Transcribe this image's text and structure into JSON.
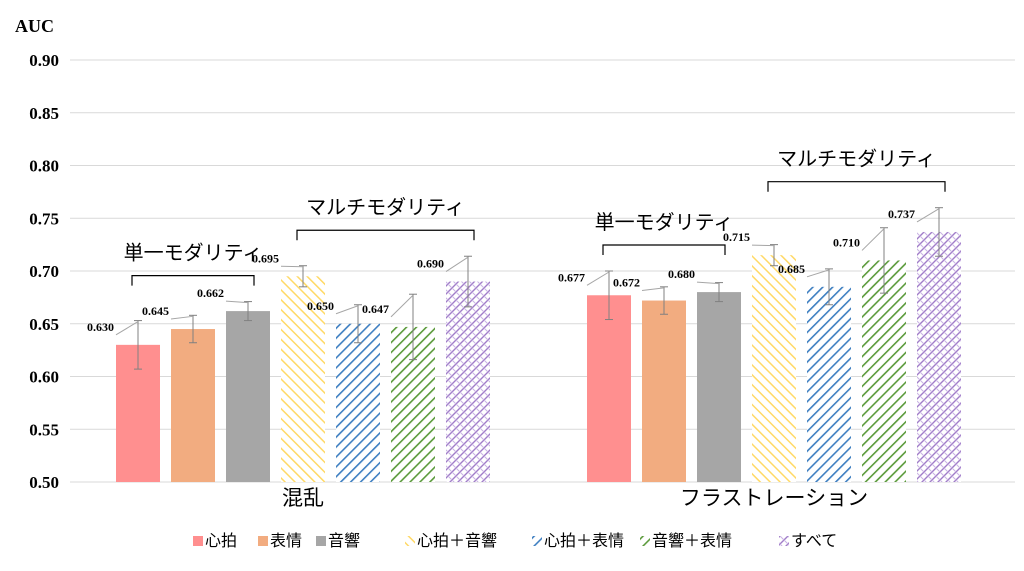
{
  "chart_data": {
    "type": "bar",
    "ylabel": "AUC",
    "ylim": [
      0.5,
      0.9
    ],
    "yticks": [
      "0.50",
      "0.55",
      "0.60",
      "0.65",
      "0.70",
      "0.75",
      "0.80",
      "0.85",
      "0.90"
    ],
    "grid": true,
    "legend_position": "bottom",
    "categories": [
      "混乱",
      "フラストレーション"
    ],
    "series": [
      {
        "name": "心拍",
        "values": [
          0.63,
          0.677
        ],
        "labels": [
          "0.630",
          "0.677"
        ],
        "err": [
          0.023,
          0.023
        ],
        "color": "#ff8f8f",
        "pattern": "solid"
      },
      {
        "name": "表情",
        "values": [
          0.645,
          0.672
        ],
        "labels": [
          "0.645",
          "0.672"
        ],
        "err": [
          0.013,
          0.013
        ],
        "color": "#f2ac80",
        "pattern": "solid"
      },
      {
        "name": "音響",
        "values": [
          0.662,
          0.68
        ],
        "labels": [
          "0.662",
          "0.680"
        ],
        "err": [
          0.009,
          0.009
        ],
        "color": "#a6a6a6",
        "pattern": "solid"
      },
      {
        "name": "心拍＋音響",
        "values": [
          0.695,
          0.715
        ],
        "labels": [
          "0.695",
          "0.715"
        ],
        "err": [
          0.01,
          0.01
        ],
        "color": "#ffd966",
        "pattern": "diag-back"
      },
      {
        "name": "心拍＋表情",
        "values": [
          0.65,
          0.685
        ],
        "labels": [
          "0.650",
          "0.685"
        ],
        "err": [
          0.018,
          0.017
        ],
        "color": "#3e7fc1",
        "pattern": "diag"
      },
      {
        "name": "音響＋表情",
        "values": [
          0.647,
          0.71
        ],
        "labels": [
          "0.647",
          "0.710"
        ],
        "err": [
          0.031,
          0.031
        ],
        "color": "#5a9a3a",
        "pattern": "diag"
      },
      {
        "name": "すべて",
        "values": [
          0.69,
          0.737
        ],
        "labels": [
          "0.690",
          "0.737"
        ],
        "err": [
          0.024,
          0.023
        ],
        "color": "#a07cc8",
        "pattern": "weave"
      }
    ],
    "annotations": [
      {
        "text": "単一モダリティ",
        "group": 0,
        "from": 0,
        "to": 2
      },
      {
        "text": "マルチモダリティ",
        "group": 0,
        "from": 3,
        "to": 6
      },
      {
        "text": "単一モダリティ",
        "group": 1,
        "from": 0,
        "to": 2
      },
      {
        "text": "マルチモダリティ",
        "group": 1,
        "from": 3,
        "to": 6
      }
    ]
  }
}
